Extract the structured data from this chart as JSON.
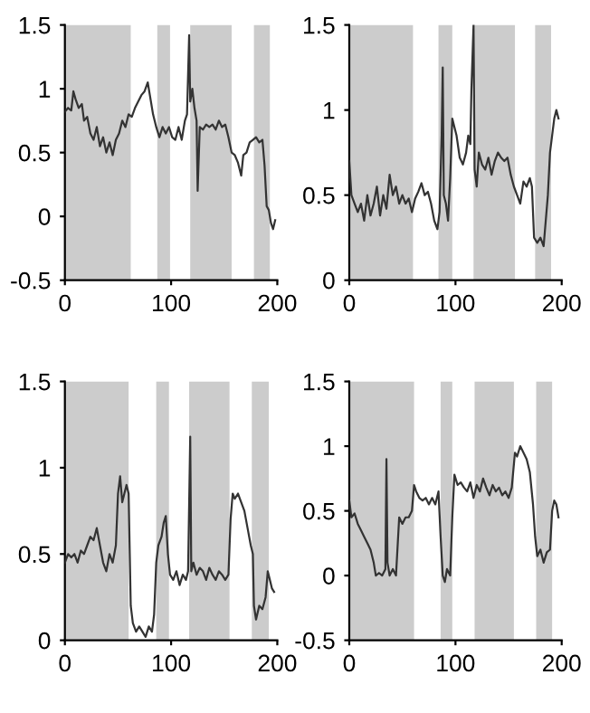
{
  "chart_data": [
    {
      "type": "line",
      "xlim": [
        0,
        200
      ],
      "xticks": [
        0,
        100,
        200
      ],
      "ylim": [
        -0.5,
        1.5
      ],
      "yticks": [
        -0.5,
        0,
        0.5,
        1,
        1.5
      ],
      "grid": false,
      "marker": "none",
      "line_style": "solid",
      "bands": [
        {
          "axis": "x",
          "from": 0,
          "to": 62,
          "color": "#cccccc"
        },
        {
          "axis": "x",
          "from": 87,
          "to": 99,
          "color": "#cccccc"
        },
        {
          "axis": "x",
          "from": 118,
          "to": 157,
          "color": "#cccccc"
        },
        {
          "axis": "x",
          "from": 178,
          "to": 193,
          "color": "#cccccc"
        }
      ],
      "series": [
        {
          "color": "#333333",
          "x": [
            0,
            3,
            6,
            8,
            10,
            13,
            16,
            18,
            21,
            24,
            27,
            30,
            33,
            36,
            39,
            42,
            45,
            48,
            51,
            54,
            57,
            60,
            63,
            66,
            69,
            72,
            75,
            78,
            80,
            83,
            86,
            89,
            92,
            95,
            98,
            101,
            104,
            107,
            110,
            113,
            115,
            117,
            118,
            120,
            122,
            124,
            125,
            127,
            130,
            133,
            136,
            139,
            142,
            145,
            148,
            151,
            154,
            157,
            160,
            163,
            166,
            168,
            171,
            174,
            177,
            180,
            183,
            186,
            188,
            190,
            192,
            194,
            196,
            198
          ],
          "values": [
            0.82,
            0.85,
            0.83,
            0.98,
            0.92,
            0.85,
            0.88,
            0.75,
            0.78,
            0.65,
            0.6,
            0.7,
            0.55,
            0.62,
            0.5,
            0.58,
            0.48,
            0.6,
            0.65,
            0.75,
            0.7,
            0.8,
            0.78,
            0.85,
            0.9,
            0.95,
            0.98,
            1.05,
            0.95,
            0.8,
            0.7,
            0.62,
            0.7,
            0.65,
            0.7,
            0.62,
            0.6,
            0.7,
            0.6,
            0.75,
            0.8,
            1.42,
            0.9,
            1.0,
            0.85,
            0.75,
            0.2,
            0.7,
            0.68,
            0.72,
            0.7,
            0.72,
            0.68,
            0.75,
            0.7,
            0.72,
            0.62,
            0.5,
            0.48,
            0.42,
            0.32,
            0.48,
            0.5,
            0.58,
            0.6,
            0.62,
            0.58,
            0.6,
            0.4,
            0.08,
            0.05,
            -0.05,
            -0.1,
            -0.03
          ]
        }
      ]
    },
    {
      "type": "line",
      "xlim": [
        0,
        200
      ],
      "xticks": [
        0,
        100,
        200
      ],
      "ylim": [
        0,
        1.5
      ],
      "yticks": [
        0,
        0.5,
        1,
        1.5
      ],
      "grid": false,
      "marker": "none",
      "line_style": "solid",
      "bands": [
        {
          "axis": "x",
          "from": 0,
          "to": 60,
          "color": "#cccccc"
        },
        {
          "axis": "x",
          "from": 84,
          "to": 97,
          "color": "#cccccc"
        },
        {
          "axis": "x",
          "from": 117,
          "to": 156,
          "color": "#cccccc"
        },
        {
          "axis": "x",
          "from": 175,
          "to": 190,
          "color": "#cccccc"
        }
      ],
      "series": [
        {
          "color": "#333333",
          "x": [
            0,
            2,
            5,
            8,
            11,
            14,
            17,
            20,
            23,
            26,
            29,
            32,
            35,
            38,
            41,
            44,
            47,
            50,
            53,
            56,
            59,
            62,
            65,
            68,
            71,
            74,
            77,
            80,
            83,
            85,
            87,
            88,
            89,
            91,
            93,
            95,
            97,
            99,
            101,
            104,
            107,
            110,
            112,
            114,
            115,
            117,
            118,
            120,
            122,
            125,
            128,
            131,
            134,
            137,
            140,
            143,
            146,
            149,
            152,
            155,
            158,
            161,
            164,
            167,
            170,
            172,
            174,
            177,
            180,
            183,
            185,
            187,
            189,
            191,
            193,
            195,
            197
          ],
          "values": [
            0.7,
            0.5,
            0.45,
            0.4,
            0.45,
            0.35,
            0.5,
            0.38,
            0.45,
            0.55,
            0.38,
            0.5,
            0.42,
            0.62,
            0.5,
            0.55,
            0.45,
            0.5,
            0.45,
            0.48,
            0.4,
            0.48,
            0.52,
            0.57,
            0.5,
            0.52,
            0.45,
            0.35,
            0.3,
            0.4,
            0.85,
            1.25,
            0.5,
            0.45,
            0.35,
            0.6,
            0.95,
            0.9,
            0.85,
            0.72,
            0.68,
            0.75,
            0.85,
            0.8,
            1.12,
            1.5,
            0.65,
            0.55,
            0.75,
            0.68,
            0.65,
            0.72,
            0.62,
            0.7,
            0.75,
            0.72,
            0.7,
            0.72,
            0.62,
            0.55,
            0.5,
            0.45,
            0.58,
            0.55,
            0.6,
            0.55,
            0.25,
            0.22,
            0.25,
            0.2,
            0.35,
            0.5,
            0.75,
            0.85,
            0.95,
            1.0,
            0.95
          ]
        }
      ]
    },
    {
      "type": "line",
      "xlim": [
        0,
        200
      ],
      "xticks": [
        0,
        100,
        200
      ],
      "ylim": [
        0,
        1.5
      ],
      "yticks": [
        0,
        0.5,
        1,
        1.5
      ],
      "grid": false,
      "marker": "none",
      "line_style": "solid",
      "bands": [
        {
          "axis": "x",
          "from": 0,
          "to": 60,
          "color": "#cccccc"
        },
        {
          "axis": "x",
          "from": 86,
          "to": 98,
          "color": "#cccccc"
        },
        {
          "axis": "x",
          "from": 117,
          "to": 155,
          "color": "#cccccc"
        },
        {
          "axis": "x",
          "from": 176,
          "to": 192,
          "color": "#cccccc"
        }
      ],
      "series": [
        {
          "color": "#333333",
          "x": [
            0,
            3,
            6,
            9,
            12,
            15,
            18,
            21,
            24,
            27,
            30,
            33,
            36,
            39,
            42,
            45,
            48,
            50,
            52,
            54,
            56,
            58,
            60,
            62,
            64,
            67,
            70,
            73,
            76,
            79,
            82,
            84,
            86,
            88,
            91,
            93,
            95,
            97,
            99,
            102,
            105,
            108,
            111,
            114,
            116,
            118,
            119,
            121,
            124,
            127,
            130,
            133,
            136,
            139,
            142,
            145,
            148,
            151,
            154,
            156,
            158,
            160,
            163,
            166,
            169,
            172,
            175,
            177,
            178,
            180,
            183,
            186,
            189,
            191,
            193,
            195,
            197
          ],
          "values": [
            0.45,
            0.5,
            0.48,
            0.5,
            0.45,
            0.52,
            0.5,
            0.55,
            0.6,
            0.58,
            0.65,
            0.55,
            0.45,
            0.4,
            0.5,
            0.45,
            0.55,
            0.85,
            0.95,
            0.8,
            0.85,
            0.9,
            0.85,
            0.2,
            0.1,
            0.05,
            0.08,
            0.05,
            0.02,
            0.08,
            0.05,
            0.15,
            0.45,
            0.55,
            0.6,
            0.68,
            0.72,
            0.5,
            0.38,
            0.35,
            0.4,
            0.32,
            0.38,
            0.35,
            0.4,
            1.18,
            0.4,
            0.45,
            0.38,
            0.42,
            0.4,
            0.35,
            0.42,
            0.38,
            0.35,
            0.4,
            0.38,
            0.35,
            0.38,
            0.7,
            0.85,
            0.82,
            0.85,
            0.8,
            0.75,
            0.65,
            0.55,
            0.5,
            0.2,
            0.12,
            0.2,
            0.18,
            0.25,
            0.4,
            0.35,
            0.3,
            0.28
          ]
        }
      ]
    },
    {
      "type": "line",
      "xlim": [
        0,
        200
      ],
      "xticks": [
        0,
        100,
        200
      ],
      "ylim": [
        -0.5,
        1.5
      ],
      "yticks": [
        -0.5,
        0,
        0.5,
        1,
        1.5
      ],
      "grid": false,
      "marker": "none",
      "line_style": "solid",
      "bands": [
        {
          "axis": "x",
          "from": 0,
          "to": 61,
          "color": "#cccccc"
        },
        {
          "axis": "x",
          "from": 86,
          "to": 97,
          "color": "#cccccc"
        },
        {
          "axis": "x",
          "from": 118,
          "to": 155,
          "color": "#cccccc"
        },
        {
          "axis": "x",
          "from": 176,
          "to": 191,
          "color": "#cccccc"
        }
      ],
      "series": [
        {
          "color": "#333333",
          "x": [
            0,
            2,
            5,
            8,
            11,
            14,
            17,
            20,
            23,
            25,
            28,
            31,
            34,
            35,
            36,
            38,
            41,
            44,
            47,
            50,
            53,
            56,
            59,
            61,
            63,
            66,
            69,
            72,
            75,
            78,
            81,
            84,
            86,
            88,
            90,
            92,
            95,
            97,
            99,
            102,
            105,
            108,
            111,
            114,
            117,
            120,
            123,
            126,
            129,
            132,
            135,
            138,
            141,
            144,
            147,
            150,
            153,
            156,
            158,
            161,
            164,
            167,
            170,
            173,
            175,
            177,
            180,
            183,
            186,
            189,
            191,
            193,
            195,
            197
          ],
          "values": [
            0.58,
            0.45,
            0.48,
            0.4,
            0.35,
            0.3,
            0.25,
            0.2,
            0.1,
            0.0,
            0.02,
            0.0,
            0.05,
            0.9,
            0.1,
            0.0,
            0.05,
            0.0,
            0.45,
            0.4,
            0.45,
            0.45,
            0.5,
            0.7,
            0.65,
            0.6,
            0.58,
            0.6,
            0.55,
            0.6,
            0.55,
            0.65,
            0.3,
            0.0,
            -0.05,
            0.05,
            0.0,
            0.45,
            0.78,
            0.7,
            0.72,
            0.68,
            0.65,
            0.72,
            0.6,
            0.7,
            0.65,
            0.75,
            0.68,
            0.62,
            0.7,
            0.65,
            0.68,
            0.62,
            0.65,
            0.6,
            0.68,
            0.95,
            0.92,
            1.0,
            0.95,
            0.9,
            0.8,
            0.55,
            0.3,
            0.15,
            0.2,
            0.1,
            0.18,
            0.2,
            0.5,
            0.58,
            0.55,
            0.45
          ]
        }
      ]
    }
  ]
}
